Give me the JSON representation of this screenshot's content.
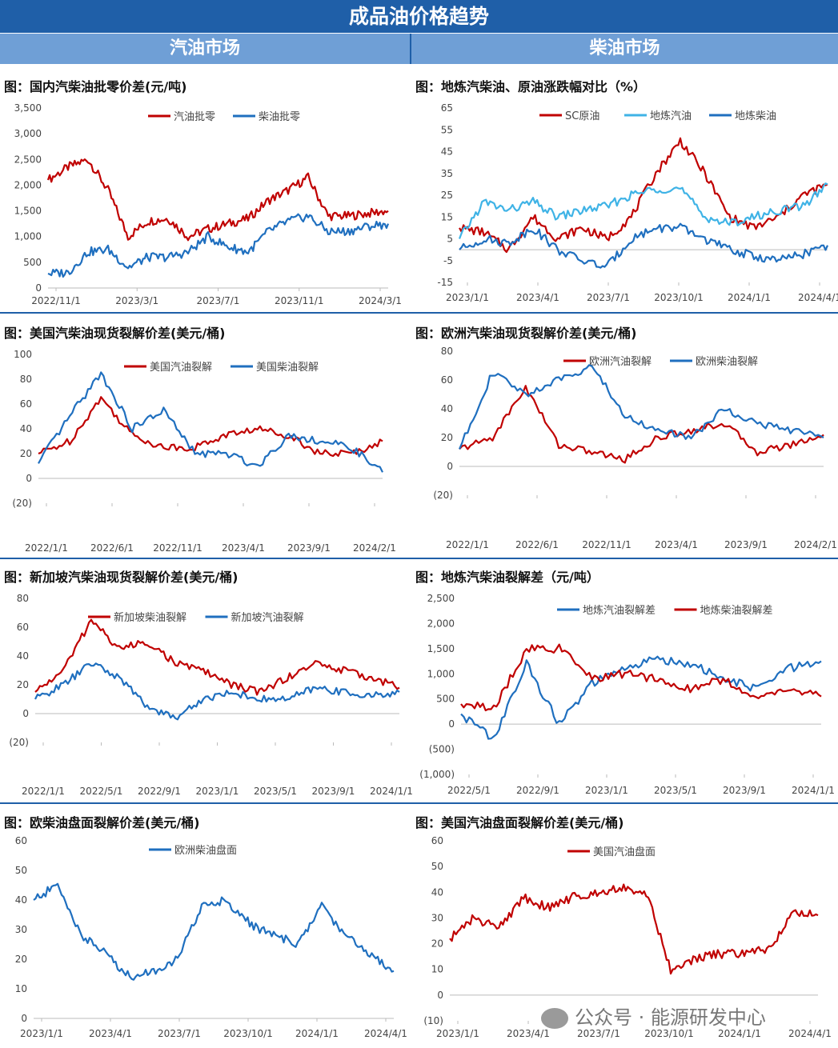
{
  "header": {
    "title": "成品油价格趋势",
    "left_section": "汽油市场",
    "right_section": "柴油市场"
  },
  "watermark": "公众号 · 能源研发中心",
  "panels": [
    {
      "title": "图：国内汽柴油批零价差(元/吨)",
      "y_ticks": [
        "3,500",
        "3,000",
        "2,500",
        "2,000",
        "1,500",
        "1,000",
        "500",
        "0"
      ],
      "x_ticks": [
        "2022/11/1",
        "2023/3/1",
        "2023/7/1",
        "2023/11/1",
        "2024/3/1"
      ],
      "legend": [
        "汽油批零",
        "柴油批零"
      ]
    },
    {
      "title": "图：地炼汽柴油、原油涨跌幅对比（%）",
      "y_ticks": [
        "65",
        "55",
        "45",
        "35",
        "25",
        "15",
        "5",
        "-5",
        "-15"
      ],
      "x_ticks": [
        "2023/1/1",
        "2023/4/1",
        "2023/7/1",
        "2023/10/1",
        "2024/1/1",
        "2024/4/1"
      ],
      "legend": [
        "SC原油",
        "地炼汽油",
        "地炼柴油"
      ]
    },
    {
      "title": "图：美国汽柴油现货裂解价差(美元/桶)",
      "y_ticks": [
        "100",
        "80",
        "60",
        "40",
        "20",
        "0",
        "(20)"
      ],
      "x_ticks": [
        "2022/1/1",
        "2022/6/1",
        "2022/11/1",
        "2023/4/1",
        "2023/9/1",
        "2024/2/1"
      ],
      "legend": [
        "美国汽油裂解",
        "美国柴油裂解"
      ]
    },
    {
      "title": "图：欧洲汽柴油现货裂解价差(美元/桶)",
      "y_ticks": [
        "80",
        "60",
        "40",
        "20",
        "0",
        "(20)"
      ],
      "x_ticks": [
        "2022/1/1",
        "2022/6/1",
        "2022/11/1",
        "2023/4/1",
        "2023/9/1",
        "2024/2/1"
      ],
      "legend": [
        "欧洲汽油裂解",
        "欧洲柴油裂解"
      ]
    },
    {
      "title": "图：新加坡汽柴油现货裂解价差(美元/桶)",
      "y_ticks": [
        "80",
        "60",
        "40",
        "20",
        "0",
        "(20)"
      ],
      "x_ticks": [
        "2022/1/1",
        "2022/5/1",
        "2022/9/1",
        "2023/1/1",
        "2023/5/1",
        "2023/9/1",
        "2024/1/1"
      ],
      "legend": [
        "新加坡柴油裂解",
        "新加坡汽油裂解"
      ]
    },
    {
      "title": "图：地炼汽柴油裂解差（元/吨）",
      "y_ticks": [
        "2,500",
        "2,000",
        "1,500",
        "1,000",
        "500",
        "0",
        "(500)",
        "(1,000)"
      ],
      "x_ticks": [
        "2022/5/1",
        "2022/9/1",
        "2023/1/1",
        "2023/5/1",
        "2023/9/1",
        "2024/1/1"
      ],
      "legend": [
        "地炼汽油裂解差",
        "地炼柴油裂解差"
      ]
    },
    {
      "title": "图：欧柴油盘面裂解价差(美元/桶)",
      "y_ticks": [
        "60",
        "50",
        "40",
        "30",
        "20",
        "10",
        "0"
      ],
      "x_ticks": [
        "2023/1/1",
        "2023/4/1",
        "2023/7/1",
        "2023/10/1",
        "2024/1/1",
        "2024/4/1"
      ],
      "legend": [
        "欧洲柴油盘面"
      ]
    },
    {
      "title": "图：美国汽油盘面裂解价差(美元/桶)",
      "y_ticks": [
        "60",
        "50",
        "40",
        "30",
        "20",
        "10",
        "0",
        "(10)"
      ],
      "x_ticks": [
        "2023/1/1",
        "2023/4/1",
        "2023/7/1",
        "2023/10/1",
        "2024/1/1",
        "2024/4/1"
      ],
      "legend": [
        "美国汽油盘面"
      ]
    }
  ],
  "chart_data": [
    {
      "type": "line",
      "title": "图：国内汽柴油批零价差(元/吨)",
      "x": [
        "2022/11/1",
        "2022/12/1",
        "2023/1/1",
        "2023/2/1",
        "2023/3/1",
        "2023/4/1",
        "2023/5/1",
        "2023/6/1",
        "2023/7/1",
        "2023/8/1",
        "2023/9/1",
        "2023/10/1",
        "2023/11/1",
        "2023/12/1",
        "2024/1/1",
        "2024/2/1",
        "2024/3/1",
        "2024/4/1"
      ],
      "ylim": [
        0,
        3500
      ],
      "colors": [
        "#c00000",
        "#1f6fbf"
      ],
      "series": [
        {
          "name": "汽油批零",
          "values": [
            2100,
            2350,
            2500,
            1900,
            1000,
            1300,
            1350,
            1000,
            1150,
            1250,
            1350,
            1700,
            1900,
            2150,
            1400,
            1400,
            1450,
            1500
          ]
        },
        {
          "name": "柴油批零",
          "values": [
            280,
            300,
            700,
            750,
            400,
            600,
            600,
            700,
            1000,
            800,
            700,
            1100,
            1300,
            1400,
            1100,
            1100,
            1200,
            1250
          ]
        }
      ]
    },
    {
      "type": "line",
      "title": "图：地炼汽柴油、原油涨跌幅对比（%）",
      "x": [
        "2023/1/1",
        "2023/2/1",
        "2023/3/1",
        "2023/4/1",
        "2023/5/1",
        "2023/6/1",
        "2023/7/1",
        "2023/8/1",
        "2023/9/1",
        "2023/10/1",
        "2023/11/1",
        "2023/12/1",
        "2024/1/1",
        "2024/2/1",
        "2024/3/1",
        "2024/4/1"
      ],
      "ylim": [
        -15,
        65
      ],
      "colors": [
        "#c00000",
        "#3fb3e6",
        "#1f6fbf"
      ],
      "series": [
        {
          "name": "SC原油",
          "values": [
            10,
            8,
            0,
            15,
            5,
            10,
            5,
            15,
            35,
            50,
            35,
            15,
            10,
            15,
            25,
            30
          ]
        },
        {
          "name": "地炼汽油",
          "values": [
            5,
            22,
            18,
            22,
            15,
            18,
            20,
            25,
            28,
            28,
            15,
            12,
            15,
            18,
            20,
            30
          ]
        },
        {
          "name": "地炼柴油",
          "values": [
            0,
            5,
            3,
            10,
            0,
            -5,
            -8,
            5,
            10,
            10,
            5,
            0,
            -3,
            -5,
            -2,
            2
          ]
        }
      ]
    },
    {
      "type": "line",
      "title": "图：美国汽柴油现货裂解价差(美元/桶)",
      "x": [
        "2022/1/1",
        "2022/4/1",
        "2022/6/1",
        "2022/9/1",
        "2022/11/1",
        "2023/2/1",
        "2023/4/1",
        "2023/7/1",
        "2023/9/1",
        "2023/12/1",
        "2024/2/1",
        "2024/4/1"
      ],
      "ylim": [
        -20,
        100
      ],
      "colors": [
        "#c00000",
        "#1f6fbf"
      ],
      "series": [
        {
          "name": "美国汽油裂解",
          "values": [
            20,
            30,
            65,
            35,
            25,
            25,
            35,
            40,
            35,
            20,
            20,
            30
          ]
        },
        {
          "name": "美国柴油裂解",
          "values": [
            12,
            50,
            85,
            40,
            55,
            20,
            20,
            10,
            35,
            30,
            25,
            5
          ]
        }
      ]
    },
    {
      "type": "line",
      "title": "图：欧洲汽柴油现货裂解价差(美元/桶)",
      "x": [
        "2022/1/1",
        "2022/4/1",
        "2022/6/1",
        "2022/9/1",
        "2022/11/1",
        "2023/2/1",
        "2023/4/1",
        "2023/7/1",
        "2023/9/1",
        "2023/12/1",
        "2024/2/1",
        "2024/4/1"
      ],
      "ylim": [
        -20,
        80
      ],
      "colors": [
        "#c00000",
        "#1f6fbf"
      ],
      "series": [
        {
          "name": "欧洲汽油裂解",
          "values": [
            12,
            20,
            55,
            15,
            10,
            5,
            20,
            25,
            30,
            10,
            15,
            22
          ]
        },
        {
          "name": "欧洲柴油裂解",
          "values": [
            12,
            65,
            50,
            60,
            70,
            35,
            25,
            20,
            40,
            30,
            25,
            20
          ]
        }
      ]
    },
    {
      "type": "line",
      "title": "图：新加坡汽柴油现货裂解价差(美元/桶)",
      "x": [
        "2022/1/1",
        "2022/3/1",
        "2022/5/1",
        "2022/7/1",
        "2022/9/1",
        "2022/11/1",
        "2023/1/1",
        "2023/3/1",
        "2023/5/1",
        "2023/7/1",
        "2023/9/1",
        "2023/11/1",
        "2024/1/1",
        "2024/3/1"
      ],
      "ylim": [
        -20,
        80
      ],
      "colors": [
        "#c00000",
        "#1f6fbf"
      ],
      "series": [
        {
          "name": "新加坡柴油裂解",
          "values": [
            15,
            30,
            65,
            45,
            50,
            35,
            30,
            20,
            15,
            25,
            35,
            30,
            25,
            18
          ]
        },
        {
          "name": "新加坡汽油裂解",
          "values": [
            10,
            20,
            35,
            25,
            5,
            -3,
            10,
            15,
            10,
            10,
            18,
            15,
            12,
            15
          ]
        }
      ]
    },
    {
      "type": "line",
      "title": "图：地炼汽柴油裂解差（元/吨）",
      "x": [
        "2022/5/1",
        "2022/7/1",
        "2022/9/1",
        "2022/11/1",
        "2023/1/1",
        "2023/3/1",
        "2023/5/1",
        "2023/7/1",
        "2023/9/1",
        "2023/11/1",
        "2024/1/1",
        "2024/3/1"
      ],
      "ylim": [
        -1000,
        2500
      ],
      "colors": [
        "#1f6fbf",
        "#c00000"
      ],
      "series": [
        {
          "name": "地炼汽油裂解差",
          "values": [
            200,
            -300,
            1200,
            0,
            800,
            1100,
            1300,
            1200,
            900,
            700,
            1100,
            1250
          ]
        },
        {
          "name": "地炼柴油裂解差",
          "values": [
            400,
            300,
            1500,
            1500,
            900,
            1000,
            900,
            700,
            900,
            500,
            700,
            550
          ]
        }
      ]
    },
    {
      "type": "line",
      "title": "图：欧柴油盘面裂解价差(美元/桶)",
      "x": [
        "2023/1/1",
        "2023/2/1",
        "2023/3/1",
        "2023/4/1",
        "2023/5/1",
        "2023/6/1",
        "2023/7/1",
        "2023/8/1",
        "2023/9/1",
        "2023/10/1",
        "2023/11/1",
        "2023/12/1",
        "2024/1/1",
        "2024/2/1",
        "2024/3/1",
        "2024/4/1"
      ],
      "ylim": [
        0,
        60
      ],
      "colors": [
        "#1f6fbf"
      ],
      "series": [
        {
          "name": "欧洲柴油盘面",
          "values": [
            40,
            45,
            28,
            22,
            14,
            16,
            20,
            38,
            40,
            32,
            28,
            25,
            38,
            28,
            22,
            16
          ]
        }
      ]
    },
    {
      "type": "line",
      "title": "图：美国汽油盘面裂解价差(美元/桶)",
      "x": [
        "2023/1/1",
        "2023/2/1",
        "2023/3/1",
        "2023/4/1",
        "2023/5/1",
        "2023/6/1",
        "2023/7/1",
        "2023/8/1",
        "2023/9/1",
        "2023/10/1",
        "2023/11/1",
        "2023/12/1",
        "2024/1/1",
        "2024/2/1",
        "2024/3/1",
        "2024/4/1"
      ],
      "ylim": [
        -10,
        60
      ],
      "colors": [
        "#c00000"
      ],
      "series": [
        {
          "name": "美国汽油盘面",
          "values": [
            22,
            30,
            26,
            38,
            34,
            38,
            40,
            42,
            40,
            10,
            14,
            16,
            16,
            18,
            32,
            31
          ]
        }
      ]
    }
  ]
}
